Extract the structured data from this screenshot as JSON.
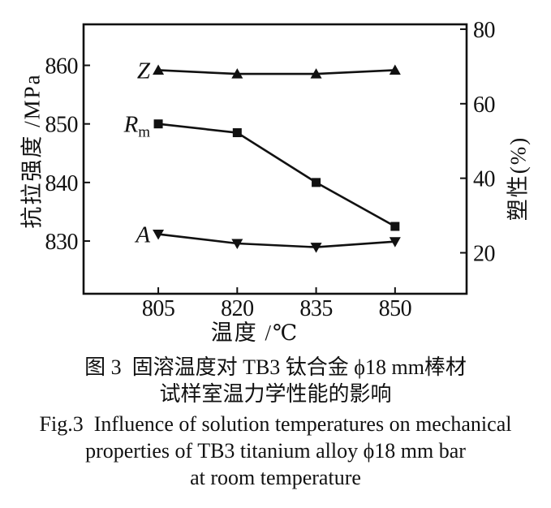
{
  "chart_data": {
    "type": "line",
    "x": [
      805,
      820,
      835,
      850
    ],
    "x_ticks": [
      "805",
      "820",
      "835",
      "850"
    ],
    "y_ticks_left": [
      "860",
      "850",
      "840",
      "830"
    ],
    "y_ticks_right": [
      "80",
      "60",
      "40",
      "20"
    ],
    "xlabel": "温度 /℃",
    "ylabel_left": "抗拉强度 /MPa",
    "ylabel_right": "塑性(%)",
    "xlim": [
      790.8,
      863.6
    ],
    "ylim_left": [
      821,
      867
    ],
    "ylim_right": [
      9,
      81.3
    ],
    "grid": false,
    "legend_position": "inline-labels-left-of-first-point",
    "line_color": "#111111",
    "series": [
      {
        "name": "Z",
        "label": "Z",
        "label_sub": "",
        "axis": "right",
        "marker": "triangle-up",
        "unit": "%",
        "values": [
          69,
          68,
          68,
          69
        ]
      },
      {
        "name": "Rm",
        "label": "R",
        "label_sub": "m",
        "axis": "left",
        "marker": "square",
        "unit": "MPa",
        "values": [
          850,
          848.5,
          840,
          832.5
        ]
      },
      {
        "name": "A",
        "label": "A",
        "label_sub": "",
        "axis": "right",
        "marker": "triangle-down",
        "unit": "%",
        "values": [
          25,
          22.5,
          21.5,
          23
        ]
      }
    ]
  },
  "caption": {
    "zh_line1": "图 3  固溶温度对 TB3 钛合金 ϕ18 mm棒材",
    "zh_line2": "试样室温力学性能的影响",
    "en_line1": "Fig.3  Influence of solution temperatures on mechanical",
    "en_line2": "properties of TB3 titanium alloy ϕ18 mm bar",
    "en_line3": "at room temperature"
  }
}
